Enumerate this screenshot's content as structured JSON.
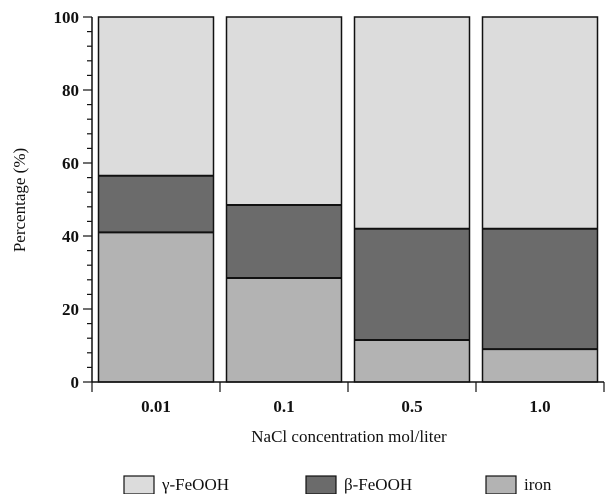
{
  "chart_data": {
    "type": "bar",
    "stacked": true,
    "categories": [
      "0.01",
      "0.1",
      "0.5",
      "1.0"
    ],
    "series": [
      {
        "name": "iron",
        "values": [
          41,
          28.5,
          11.5,
          9
        ],
        "color": "#b3b3b3"
      },
      {
        "name": "β-FeOOH",
        "values": [
          15.5,
          20,
          30.5,
          33
        ],
        "color": "#6b6b6b"
      },
      {
        "name": "γ-FeOOH",
        "values": [
          43.5,
          51.5,
          58,
          58
        ],
        "color": "#dcdcdc"
      }
    ],
    "legend_order": [
      "γ-FeOOH",
      "β-FeOOH",
      "iron"
    ],
    "legend_position": "bottom",
    "xlabel": "NaCl concentration mol/liter",
    "ylabel": "Percentage (%)",
    "ylim": [
      0,
      100
    ],
    "yticks": [
      0,
      20,
      40,
      60,
      80,
      100
    ],
    "grid": false
  }
}
